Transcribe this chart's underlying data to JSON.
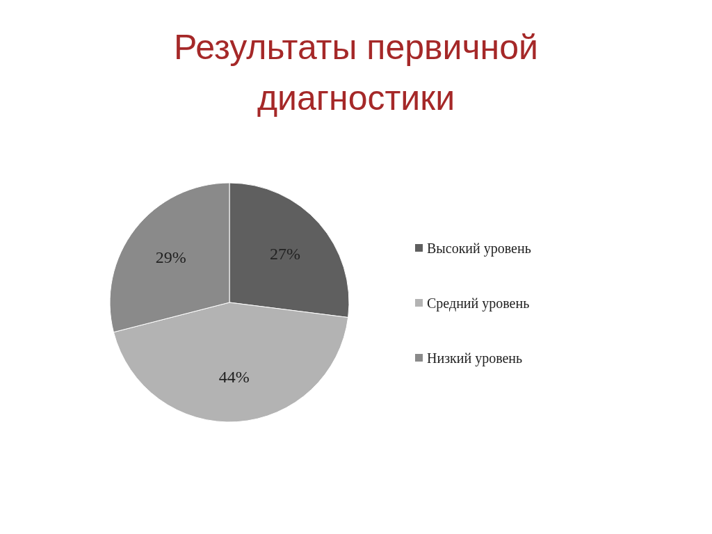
{
  "chart_data": {
    "type": "pie",
    "title": "Результаты первичной диагностики",
    "categories": [
      "Высокий уровень",
      "Средний уровень",
      "Низкий уровень"
    ],
    "values": [
      27,
      44,
      29
    ],
    "colors": [
      "#5f5f5f",
      "#b3b3b3",
      "#8a8a8a"
    ],
    "value_labels": [
      "27%",
      "44%",
      "29%"
    ],
    "legend": "right"
  }
}
